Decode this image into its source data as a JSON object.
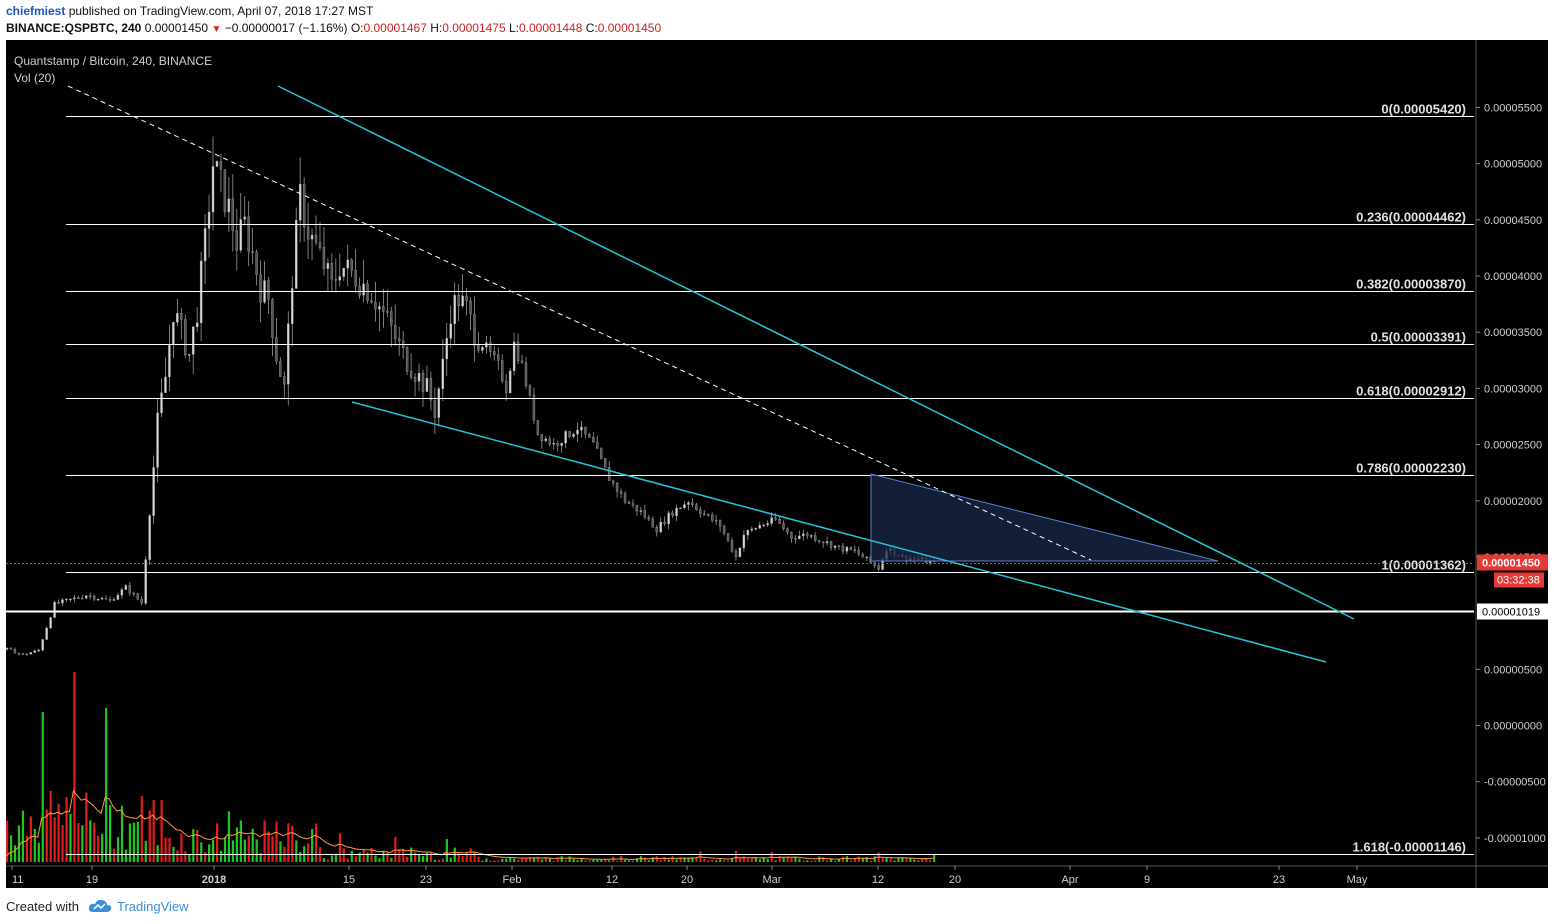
{
  "header": {
    "author": "chiefmiest",
    "published_text": "published on TradingView.com, April 07, 2018 17:27 MST",
    "symbol": "BINANCE:QSPBTC, 240",
    "last_price": "0.00001450",
    "change": "−0.00000017 (−1.16%)",
    "open_label": "O:",
    "open_value": "0.00001467",
    "high_label": "H:",
    "high_value": "0.00001475",
    "low_label": "L:",
    "low_value": "0.00001448",
    "close_label": "C:",
    "close_value": "0.00001450"
  },
  "legend": {
    "title": "Quantstamp / Bitcoin, 240, BINANCE",
    "volume": "Vol (20)"
  },
  "footer": {
    "created_with": "Created with",
    "brand": "TradingView"
  },
  "colors": {
    "background": "#000000",
    "up_candle": "#d8d8d8",
    "volume_up": "#1ec81e",
    "volume_down": "#e51c1c",
    "volume_ma": "#ff9a3c",
    "trendline": "#26c6da",
    "fib_line": "#ffffff",
    "triangle_fill": "#1a2a4a",
    "triangle_edge": "#5b7fd1",
    "price_badge": "#e53935",
    "support_line": "#ffffff"
  },
  "chart_data": {
    "type": "candlestick",
    "title": "Quantstamp / Bitcoin, 240, BINANCE",
    "y_range": [
      -1.25e-05,
      6.1e-05
    ],
    "x_ticks": [
      "11",
      "19",
      "2018",
      "15",
      "23",
      "Feb",
      "12",
      "20",
      "Mar",
      "12",
      "20",
      "Apr",
      "9",
      "23",
      "May"
    ],
    "y_ticks": [
      "0.00005500",
      "0.00005000",
      "0.00004500",
      "0.00004000",
      "0.00003500",
      "0.00003000",
      "0.00002500",
      "0.00002000",
      "0.00001500",
      "0.00000500",
      "0.00000000",
      "-0.00000500",
      "-0.00001000"
    ],
    "fib_levels": [
      {
        "label": "0(0.00005420)",
        "value": 5.42e-05
      },
      {
        "label": "0.236(0.00004462)",
        "value": 4.462e-05
      },
      {
        "label": "0.382(0.00003870)",
        "value": 3.87e-05
      },
      {
        "label": "0.5(0.00003391)",
        "value": 3.391e-05
      },
      {
        "label": "0.618(0.00002912)",
        "value": 2.912e-05
      },
      {
        "label": "0.786(0.00002230)",
        "value": 2.23e-05
      },
      {
        "label": "1(0.00001362)",
        "value": 1.362e-05
      },
      {
        "label": "1.618(-0.00001146)",
        "value": -1.146e-05
      }
    ],
    "support": {
      "label": "0.00001019",
      "value": 1.019e-05
    },
    "last_price": {
      "label": "0.00001450",
      "value": 1.45e-05,
      "countdown": "03:32:38"
    },
    "price_path": [
      {
        "t": 0,
        "p": 6.8e-06
      },
      {
        "t": 2,
        "p": 6.3e-06
      },
      {
        "t": 4,
        "p": 6.7e-06
      },
      {
        "t": 6,
        "p": 1.08e-05
      },
      {
        "t": 8,
        "p": 1.12e-05
      },
      {
        "t": 10,
        "p": 1.16e-05
      },
      {
        "t": 13,
        "p": 1.11e-05
      },
      {
        "t": 15,
        "p": 1.23e-05
      },
      {
        "t": 17,
        "p": 1.09e-05
      },
      {
        "t": 18,
        "p": 1.9e-05
      },
      {
        "t": 19,
        "p": 2.7e-05
      },
      {
        "t": 20,
        "p": 3.1e-05
      },
      {
        "t": 21,
        "p": 3.7e-05
      },
      {
        "t": 23,
        "p": 3.3e-05
      },
      {
        "t": 24,
        "p": 3.7e-05
      },
      {
        "t": 25,
        "p": 4.3e-05
      },
      {
        "t": 26,
        "p": 5e-05
      },
      {
        "t": 27,
        "p": 4.8e-05
      },
      {
        "t": 28,
        "p": 4.6e-05
      },
      {
        "t": 29,
        "p": 4.3e-05
      },
      {
        "t": 30,
        "p": 4.45e-05
      },
      {
        "t": 31,
        "p": 4.2e-05
      },
      {
        "t": 32,
        "p": 3.9e-05
      },
      {
        "t": 33,
        "p": 3.8e-05
      },
      {
        "t": 34,
        "p": 3.3e-05
      },
      {
        "t": 35,
        "p": 3e-05
      },
      {
        "t": 36,
        "p": 4e-05
      },
      {
        "t": 37,
        "p": 4.7e-05
      },
      {
        "t": 38,
        "p": 4.4e-05
      },
      {
        "t": 40,
        "p": 4.1e-05
      },
      {
        "t": 41,
        "p": 3.9e-05
      },
      {
        "t": 42,
        "p": 4.1e-05
      },
      {
        "t": 44,
        "p": 4e-05
      },
      {
        "t": 46,
        "p": 3.85e-05
      },
      {
        "t": 48,
        "p": 3.6e-05
      },
      {
        "t": 50,
        "p": 3.3e-05
      },
      {
        "t": 52,
        "p": 3.1e-05
      },
      {
        "t": 53,
        "p": 3e-05
      },
      {
        "t": 54,
        "p": 2.8e-05
      },
      {
        "t": 55,
        "p": 3.2e-05
      },
      {
        "t": 56,
        "p": 3.7e-05
      },
      {
        "t": 57,
        "p": 3.8e-05
      },
      {
        "t": 58,
        "p": 3.7e-05
      },
      {
        "t": 59,
        "p": 3.5e-05
      },
      {
        "t": 60,
        "p": 3.4e-05
      },
      {
        "t": 62,
        "p": 3.2e-05
      },
      {
        "t": 63,
        "p": 3e-05
      },
      {
        "t": 64,
        "p": 3.4e-05
      },
      {
        "t": 65,
        "p": 3.2e-05
      },
      {
        "t": 66,
        "p": 2.9e-05
      },
      {
        "t": 67,
        "p": 2.6e-05
      },
      {
        "t": 69,
        "p": 2.5e-05
      },
      {
        "t": 71,
        "p": 2.6e-05
      },
      {
        "t": 72,
        "p": 2.65e-05
      },
      {
        "t": 74,
        "p": 2.5e-05
      },
      {
        "t": 76,
        "p": 2.2e-05
      },
      {
        "t": 78,
        "p": 2e-05
      },
      {
        "t": 80,
        "p": 1.9e-05
      },
      {
        "t": 82,
        "p": 1.75e-05
      },
      {
        "t": 84,
        "p": 1.9e-05
      },
      {
        "t": 86,
        "p": 2e-05
      },
      {
        "t": 88,
        "p": 1.88e-05
      },
      {
        "t": 90,
        "p": 1.78e-05
      },
      {
        "t": 92,
        "p": 1.5e-05
      },
      {
        "t": 93,
        "p": 1.7e-05
      },
      {
        "t": 95,
        "p": 1.78e-05
      },
      {
        "t": 97,
        "p": 1.83e-05
      },
      {
        "t": 99,
        "p": 1.68e-05
      },
      {
        "t": 101,
        "p": 1.7e-05
      },
      {
        "t": 103,
        "p": 1.64e-05
      },
      {
        "t": 105,
        "p": 1.58e-05
      },
      {
        "t": 107,
        "p": 1.55e-05
      },
      {
        "t": 109,
        "p": 1.45e-05
      },
      {
        "t": 110,
        "p": 1.4e-05
      },
      {
        "t": 111,
        "p": 1.58e-05
      },
      {
        "t": 113,
        "p": 1.5e-05
      },
      {
        "t": 115,
        "p": 1.48e-05
      },
      {
        "t": 117,
        "p": 1.45e-05
      }
    ]
  }
}
